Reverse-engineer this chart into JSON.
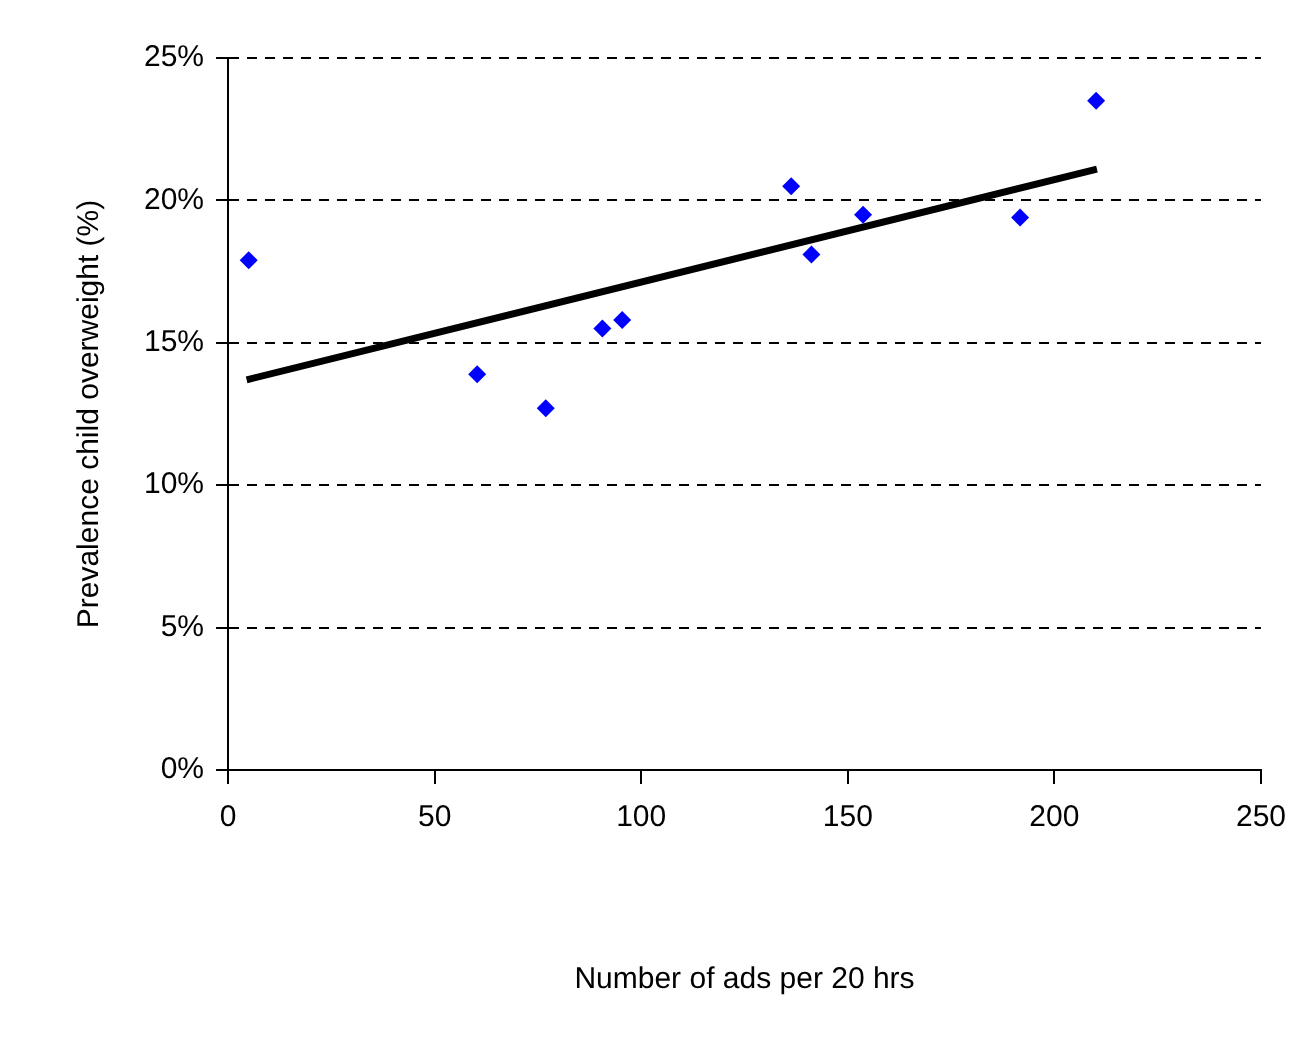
{
  "chart_data": {
    "type": "scatter",
    "xlabel": "Number of ads per 20 hrs",
    "ylabel": "Prevalence child overweight (%)",
    "xlim": [
      0,
      250
    ],
    "xticks": [
      0,
      50,
      100,
      150,
      200,
      250
    ],
    "ylim": [
      0,
      25
    ],
    "yticks": [
      {
        "value": 0,
        "label": "0%"
      },
      {
        "value": 5,
        "label": "5%"
      },
      {
        "value": 10,
        "label": "10%"
      },
      {
        "value": 15,
        "label": "15%"
      },
      {
        "value": 20,
        "label": "20%"
      },
      {
        "value": 25,
        "label": "25%"
      }
    ],
    "grid": "y",
    "legend": false,
    "marker": "diamond",
    "series": [
      {
        "type": "scatter",
        "color": "#0000ff",
        "x": [
          5,
          60.3,
          76.9,
          90.6,
          95.4,
          136.3,
          141.2,
          153.7,
          191.7,
          210.1
        ],
        "values": [
          17.9,
          13.9,
          12.7,
          15.5,
          15.8,
          20.5,
          18.1,
          19.5,
          19.4,
          23.5
        ]
      },
      {
        "type": "line",
        "color": "#000000",
        "line_style": "solid",
        "marker": "none",
        "x": [
          4.5,
          210.3
        ],
        "values": [
          13.7,
          21.1
        ]
      }
    ]
  }
}
